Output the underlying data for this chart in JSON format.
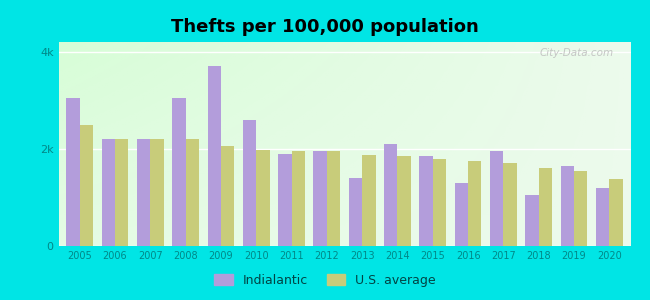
{
  "title": "Thefts per 100,000 population",
  "years": [
    2005,
    2006,
    2007,
    2008,
    2009,
    2010,
    2011,
    2012,
    2013,
    2014,
    2015,
    2016,
    2017,
    2018,
    2019,
    2020
  ],
  "indialantic": [
    3050,
    2200,
    2200,
    3050,
    3700,
    2600,
    1900,
    1950,
    1400,
    2100,
    1850,
    1300,
    1950,
    1050,
    1650,
    1200
  ],
  "us_average": [
    2500,
    2200,
    2200,
    2200,
    2050,
    1980,
    1950,
    1950,
    1880,
    1850,
    1800,
    1750,
    1700,
    1600,
    1550,
    1380
  ],
  "indialantic_color": "#b39ddb",
  "us_average_color": "#c8cc7a",
  "ylim": [
    0,
    4200
  ],
  "bar_width": 0.38,
  "title_fontsize": 13,
  "watermark": "City-Data.com",
  "legend_indialantic": "Indialantic",
  "legend_us": "U.S. average",
  "outer_bg": "#00e5e5",
  "tick_color": "#00cccc",
  "label_color": "#008888"
}
